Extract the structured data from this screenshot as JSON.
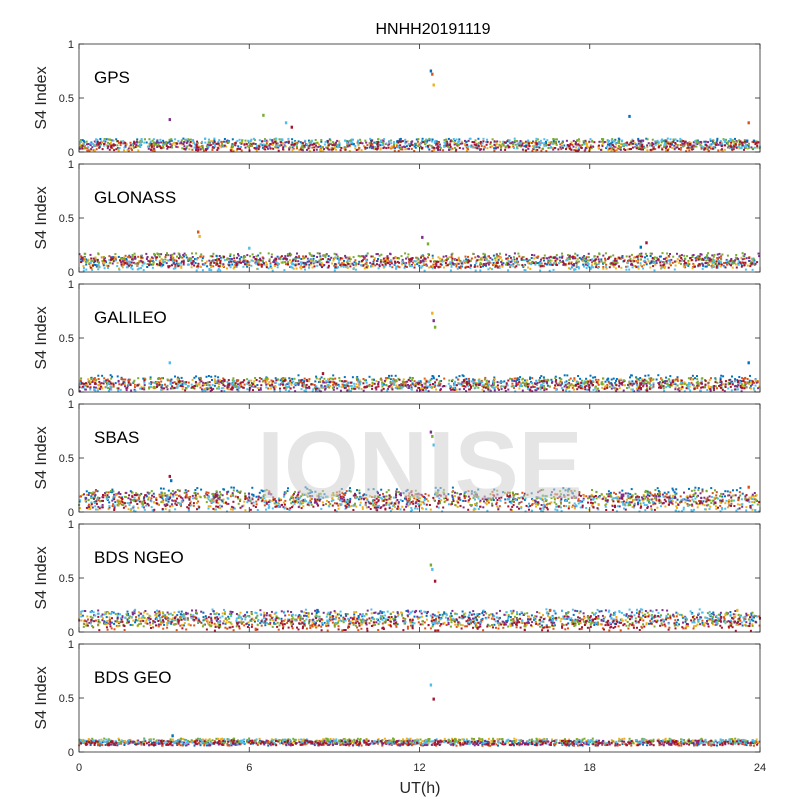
{
  "chart_data": {
    "type": "scatter",
    "title": "HNHH20191119",
    "xlabel": "UT(h)",
    "ylabel": "S4 Index",
    "xlim": [
      0,
      24
    ],
    "ylim": [
      0,
      1
    ],
    "xticks": [
      "0",
      "6",
      "12",
      "18",
      "24"
    ],
    "yticks": [
      "0",
      "0.5",
      "1"
    ],
    "watermark": "IONISE",
    "colors": [
      "#0072BD",
      "#D95319",
      "#EDB120",
      "#7E2F8E",
      "#77AC30",
      "#4DBEEE",
      "#A2142F"
    ],
    "panels": [
      {
        "label": "GPS",
        "baseline": [
          0.02,
          0.12
        ],
        "outliers": [
          {
            "x": 12.4,
            "y": 0.75
          },
          {
            "x": 12.45,
            "y": 0.72
          },
          {
            "x": 12.5,
            "y": 0.62
          },
          {
            "x": 3.2,
            "y": 0.3
          },
          {
            "x": 6.5,
            "y": 0.34
          },
          {
            "x": 7.3,
            "y": 0.27
          },
          {
            "x": 7.5,
            "y": 0.23
          },
          {
            "x": 19.4,
            "y": 0.33
          },
          {
            "x": 23.6,
            "y": 0.27
          }
        ]
      },
      {
        "label": "GLONASS",
        "baseline": [
          0.03,
          0.15
        ],
        "outliers": [
          {
            "x": 4.2,
            "y": 0.37
          },
          {
            "x": 4.25,
            "y": 0.33
          },
          {
            "x": 12.1,
            "y": 0.32
          },
          {
            "x": 12.3,
            "y": 0.26
          },
          {
            "x": 6.0,
            "y": 0.22
          },
          {
            "x": 20.0,
            "y": 0.27
          },
          {
            "x": 19.8,
            "y": 0.23
          }
        ]
      },
      {
        "label": "GALILEO",
        "baseline": [
          0.02,
          0.13
        ],
        "outliers": [
          {
            "x": 12.45,
            "y": 0.73
          },
          {
            "x": 12.5,
            "y": 0.66
          },
          {
            "x": 12.55,
            "y": 0.6
          },
          {
            "x": 3.2,
            "y": 0.27
          },
          {
            "x": 8.6,
            "y": 0.17
          },
          {
            "x": 23.6,
            "y": 0.27
          }
        ]
      },
      {
        "label": "SBAS",
        "baseline": [
          0.04,
          0.2
        ],
        "outliers": [
          {
            "x": 12.4,
            "y": 0.74
          },
          {
            "x": 12.45,
            "y": 0.7
          },
          {
            "x": 12.5,
            "y": 0.62
          },
          {
            "x": 3.2,
            "y": 0.33
          },
          {
            "x": 3.25,
            "y": 0.29
          },
          {
            "x": 23.6,
            "y": 0.23
          }
        ]
      },
      {
        "label": "BDS NGEO",
        "baseline": [
          0.03,
          0.18
        ],
        "outliers": [
          {
            "x": 12.4,
            "y": 0.62
          },
          {
            "x": 12.45,
            "y": 0.58
          },
          {
            "x": 12.55,
            "y": 0.47
          },
          {
            "x": 8.4,
            "y": 0.2
          },
          {
            "x": 16.6,
            "y": 0.2
          },
          {
            "x": 23.2,
            "y": 0.2
          }
        ]
      },
      {
        "label": "BDS GEO",
        "baseline": [
          0.07,
          0.12
        ],
        "outliers": [
          {
            "x": 12.4,
            "y": 0.62
          },
          {
            "x": 12.5,
            "y": 0.49
          },
          {
            "x": 3.3,
            "y": 0.15
          }
        ]
      }
    ]
  }
}
